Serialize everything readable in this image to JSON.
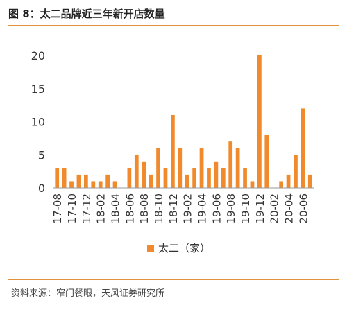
{
  "header": {
    "title": "图 8：太二品牌近三年新开店数量"
  },
  "footer": {
    "source": "资料来源：窄门餐眼，天风证券研究所"
  },
  "colors": {
    "bar": "#f08a2c",
    "rule": "#e2933e",
    "axis": "#999999"
  },
  "chart_data": {
    "type": "bar",
    "categories": [
      "17-08",
      "17-09",
      "17-10",
      "17-11",
      "17-12",
      "18-01",
      "18-02",
      "18-03",
      "18-04",
      "18-05",
      "18-06",
      "18-07",
      "18-08",
      "18-09",
      "18-10",
      "18-11",
      "18-12",
      "19-01",
      "19-02",
      "19-03",
      "19-04",
      "19-05",
      "19-06",
      "19-07",
      "19-08",
      "19-09",
      "19-10",
      "19-11",
      "19-12",
      "20-01",
      "20-02",
      "20-03",
      "20-04",
      "20-05",
      "20-06",
      "20-07"
    ],
    "tick_labels": [
      "17-08",
      "17-10",
      "17-12",
      "18-02",
      "18-04",
      "18-06",
      "18-08",
      "18-10",
      "18-12",
      "19-02",
      "19-04",
      "19-06",
      "19-08",
      "19-10",
      "19-12",
      "20-02",
      "20-04",
      "20-06"
    ],
    "series": [
      {
        "name": "太二（家）",
        "values": [
          3,
          3,
          1,
          2,
          2,
          1,
          1,
          2,
          1,
          0,
          3,
          5,
          4,
          2,
          6,
          3,
          11,
          6,
          2,
          3,
          6,
          3,
          4,
          3,
          7,
          6,
          3,
          1,
          20,
          8,
          0,
          1,
          2,
          5,
          12,
          2
        ]
      }
    ],
    "yticks": [
      0,
      5,
      10,
      15,
      20
    ],
    "ylim": [
      0,
      20
    ],
    "grid": false,
    "legend": "bottom-center"
  }
}
